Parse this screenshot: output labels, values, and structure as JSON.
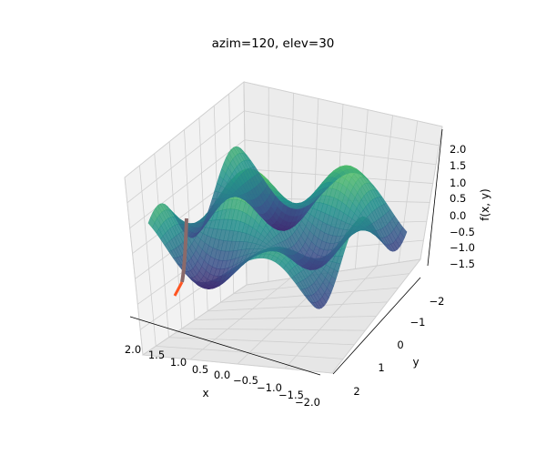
{
  "chart_data": {
    "type": "surface3d",
    "title": "azim=120, elev=30",
    "xlabel": "x",
    "ylabel": "y",
    "zlabel": "f(x, y)",
    "view": {
      "azim": 120,
      "elev": 30
    },
    "xlim": [
      -2.2,
      2.2
    ],
    "ylim": [
      -2.2,
      2.2
    ],
    "zlim": [
      -1.9,
      2.3
    ],
    "x_ticks": [
      "2.0",
      "1.5",
      "1.0",
      "0.5",
      "0.0",
      "−0.5",
      "−1.0",
      "−1.5",
      "−2.0"
    ],
    "y_ticks": [
      "−2",
      "−1",
      "0",
      "1",
      "2"
    ],
    "z_ticks": [
      "2.0",
      "1.5",
      "1.0",
      "0.5",
      "0.0",
      "−0.5",
      "−1.0",
      "−1.5"
    ],
    "grid": true,
    "colormap": "viridis",
    "surface": {
      "function": "sin(2x)·cos(2y) + 0.5·exp(−(x²+y²)) …",
      "x_range": [
        -2,
        2
      ],
      "y_range": [
        -2,
        2
      ],
      "z_range_shown": [
        -1.6,
        2.2
      ]
    },
    "path_line": {
      "color_top": "#8a6a6a",
      "color_bottom": "#ff5522"
    }
  }
}
